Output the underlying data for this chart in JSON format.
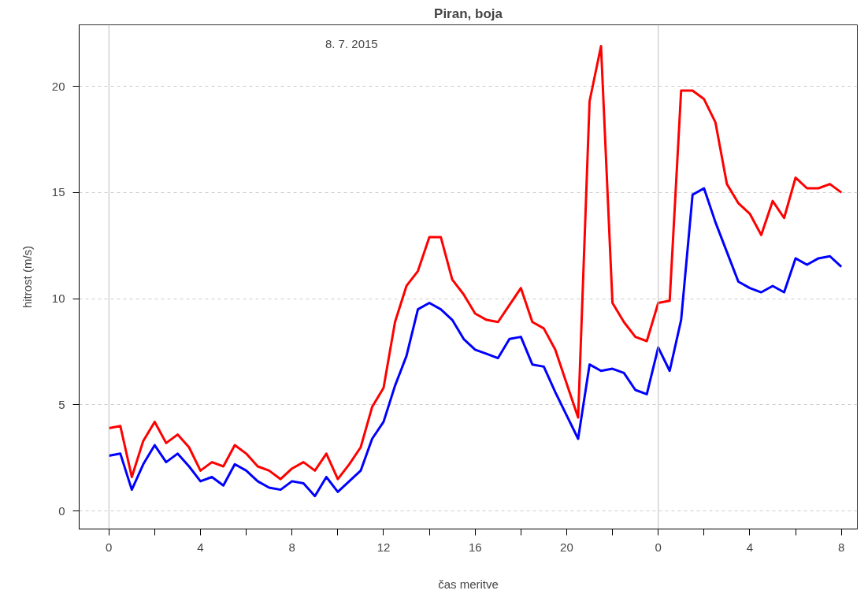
{
  "chart_data": {
    "type": "line",
    "title": "Piran, boja",
    "xlabel": "čas meritve",
    "ylabel": "hitrost (m/s)",
    "annotations": [
      "8. 7. 2015"
    ],
    "x": [
      "2015-07-08T00:00",
      "2015-07-08T00:30",
      "2015-07-08T01:00",
      "2015-07-08T01:30",
      "2015-07-08T02:00",
      "2015-07-08T02:30",
      "2015-07-08T03:00",
      "2015-07-08T03:30",
      "2015-07-08T04:00",
      "2015-07-08T04:30",
      "2015-07-08T05:00",
      "2015-07-08T05:30",
      "2015-07-08T06:00",
      "2015-07-08T06:30",
      "2015-07-08T07:00",
      "2015-07-08T07:30",
      "2015-07-08T08:00",
      "2015-07-08T08:30",
      "2015-07-08T09:00",
      "2015-07-08T09:30",
      "2015-07-08T10:00",
      "2015-07-08T10:30",
      "2015-07-08T11:00",
      "2015-07-08T11:30",
      "2015-07-08T12:00",
      "2015-07-08T12:30",
      "2015-07-08T13:00",
      "2015-07-08T13:30",
      "2015-07-08T14:00",
      "2015-07-08T14:30",
      "2015-07-08T15:00",
      "2015-07-08T15:30",
      "2015-07-08T16:00",
      "2015-07-08T16:30",
      "2015-07-08T17:00",
      "2015-07-08T17:30",
      "2015-07-08T18:00",
      "2015-07-08T18:30",
      "2015-07-08T19:00",
      "2015-07-08T19:30",
      "2015-07-08T20:00",
      "2015-07-08T20:30",
      "2015-07-08T21:00",
      "2015-07-08T21:30",
      "2015-07-08T22:00",
      "2015-07-08T22:30",
      "2015-07-08T23:00",
      "2015-07-08T23:30",
      "2015-07-09T00:00",
      "2015-07-09T00:30",
      "2015-07-09T01:00",
      "2015-07-09T01:30",
      "2015-07-09T02:00",
      "2015-07-09T02:30",
      "2015-07-09T03:00",
      "2015-07-09T03:30",
      "2015-07-09T04:00",
      "2015-07-09T04:30",
      "2015-07-09T05:00",
      "2015-07-09T05:30",
      "2015-07-09T06:00",
      "2015-07-09T06:30",
      "2015-07-09T07:00",
      "2015-07-09T07:30",
      "2015-07-09T08:00"
    ],
    "series": [
      {
        "color": "#ff0000",
        "values": [
          3.9,
          4.0,
          1.6,
          3.3,
          4.2,
          3.2,
          3.6,
          3.0,
          1.9,
          2.3,
          2.1,
          3.1,
          2.7,
          2.1,
          1.9,
          1.5,
          2.0,
          2.3,
          1.9,
          2.7,
          1.5,
          2.2,
          3.0,
          4.9,
          5.8,
          8.9,
          10.6,
          11.3,
          12.9,
          12.9,
          10.9,
          10.2,
          9.3,
          9.0,
          8.9,
          9.7,
          10.5,
          8.9,
          8.6,
          7.6,
          6.0,
          4.4,
          19.3,
          21.9,
          9.8,
          8.9,
          8.2,
          8.0,
          9.8,
          9.9,
          19.8,
          19.8,
          19.4,
          18.3,
          15.4,
          14.5,
          14.0,
          13.0,
          14.6,
          13.8,
          15.7,
          15.2,
          15.2,
          15.4,
          15.0
        ]
      },
      {
        "color": "#0000ff",
        "values": [
          2.6,
          2.7,
          1.0,
          2.2,
          3.1,
          2.3,
          2.7,
          2.1,
          1.4,
          1.6,
          1.2,
          2.2,
          1.9,
          1.4,
          1.1,
          1.0,
          1.4,
          1.3,
          0.7,
          1.6,
          0.9,
          1.4,
          1.9,
          3.4,
          4.2,
          5.9,
          7.3,
          9.5,
          9.8,
          9.5,
          9.0,
          8.1,
          7.6,
          7.4,
          7.2,
          8.1,
          8.2,
          6.9,
          6.8,
          5.6,
          4.5,
          3.4,
          6.9,
          6.6,
          6.7,
          6.5,
          5.7,
          5.5,
          7.7,
          6.6,
          9.0,
          14.9,
          15.2,
          13.6,
          12.2,
          10.8,
          10.5,
          10.3,
          10.6,
          10.3,
          11.9,
          11.6,
          11.9,
          12.0,
          11.5
        ]
      }
    ],
    "xlim": [
      "2015-07-07T22:42",
      "2015-07-09T08:42"
    ],
    "ylim": [
      -0.85,
      22.9
    ],
    "xticks": [
      {
        "value": "2015-07-08T00:00",
        "label": "0"
      },
      {
        "value": "2015-07-08T02:00",
        "label": null
      },
      {
        "value": "2015-07-08T04:00",
        "label": "4"
      },
      {
        "value": "2015-07-08T06:00",
        "label": null
      },
      {
        "value": "2015-07-08T08:00",
        "label": "8"
      },
      {
        "value": "2015-07-08T10:00",
        "label": null
      },
      {
        "value": "2015-07-08T12:00",
        "label": "12"
      },
      {
        "value": "2015-07-08T14:00",
        "label": null
      },
      {
        "value": "2015-07-08T16:00",
        "label": "16"
      },
      {
        "value": "2015-07-08T18:00",
        "label": null
      },
      {
        "value": "2015-07-08T20:00",
        "label": "20"
      },
      {
        "value": "2015-07-08T22:00",
        "label": null
      },
      {
        "value": "2015-07-09T00:00",
        "label": "0"
      },
      {
        "value": "2015-07-09T02:00",
        "label": null
      },
      {
        "value": "2015-07-09T04:00",
        "label": "4"
      },
      {
        "value": "2015-07-09T06:00",
        "label": null
      },
      {
        "value": "2015-07-09T08:00",
        "label": "8"
      }
    ],
    "yticks": [
      0,
      5,
      10,
      15,
      20
    ],
    "grid": "y",
    "marker": "none",
    "line_style": "solid",
    "ref_lines": [
      {
        "axis": "x",
        "value": "2015-07-08T00:00",
        "color": "#bebebe"
      },
      {
        "axis": "x",
        "value": "2015-07-09T00:00",
        "color": "#bebebe"
      }
    ]
  }
}
